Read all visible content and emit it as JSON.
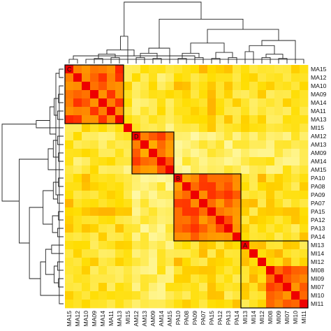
{
  "chart_data": {
    "type": "heatmap",
    "title": "",
    "xlabel": "",
    "ylabel": "",
    "row_labels": [
      "MA15",
      "MA12",
      "MA10",
      "MA09",
      "MA14",
      "MA11",
      "MA13",
      "MI15",
      "AM12",
      "AM13",
      "AM09",
      "AM14",
      "AM15",
      "PA10",
      "PA08",
      "PA09",
      "PA07",
      "PA15",
      "PA12",
      "PA13",
      "PA14",
      "MI13",
      "MI14",
      "MI12",
      "MI08",
      "MI09",
      "MI07",
      "MI10",
      "MI11"
    ],
    "col_labels": [
      "MA15",
      "MA12",
      "MA10",
      "MA09",
      "MA14",
      "MA11",
      "MA13",
      "MI15",
      "AM12",
      "AM13",
      "AM09",
      "AM14",
      "AM15",
      "PA10",
      "PA08",
      "PA09",
      "PA07",
      "PA15",
      "PA12",
      "PA13",
      "PA14",
      "MI13",
      "MI14",
      "MI12",
      "MI08",
      "MI09",
      "MI07",
      "MI10",
      "MI11"
    ],
    "colors": {
      "low": "#ffffcc",
      "mid": "#ffdd00",
      "high": "#ff2200",
      "max": "#ee0000"
    },
    "block_similarity": [
      [
        0.85,
        0.35,
        0.45,
        0.4,
        0.4
      ],
      [
        0.35,
        0.78,
        0.25,
        0.3,
        0.3
      ],
      [
        0.45,
        0.25,
        0.8,
        0.45,
        0.42
      ],
      [
        0.4,
        0.3,
        0.45,
        0.55,
        0.45
      ],
      [
        0.4,
        0.3,
        0.42,
        0.45,
        0.8
      ]
    ],
    "row_group": [
      0,
      0,
      0,
      0,
      0,
      0,
      0,
      3,
      1,
      1,
      1,
      1,
      1,
      2,
      2,
      2,
      2,
      2,
      2,
      2,
      2,
      3,
      3,
      3,
      4,
      4,
      4,
      4,
      4
    ],
    "clusters": [
      {
        "label": "C",
        "start": 0,
        "end": 6
      },
      {
        "label": "D",
        "start": 8,
        "end": 12
      },
      {
        "label": "B",
        "start": 13,
        "end": 20
      },
      {
        "label": "A",
        "start": 21,
        "end": 28
      }
    ],
    "dendrogram": [
      [
        0,
        1,
        0.05
      ],
      [
        2,
        28,
        0.05
      ],
      [
        29,
        30,
        0.09
      ],
      [
        3,
        4,
        0.06
      ],
      [
        5,
        6,
        0.07
      ],
      [
        32,
        33,
        0.11
      ],
      [
        31,
        34,
        0.16
      ],
      [
        35,
        7,
        0.32
      ],
      [
        8,
        9,
        0.07
      ],
      [
        10,
        11,
        0.06
      ],
      [
        37,
        38,
        0.12
      ],
      [
        39,
        12,
        0.18
      ],
      [
        13,
        14,
        0.06
      ],
      [
        15,
        16,
        0.07
      ],
      [
        41,
        42,
        0.12
      ],
      [
        17,
        18,
        0.06
      ],
      [
        19,
        20,
        0.07
      ],
      [
        44,
        45,
        0.13
      ],
      [
        43,
        46,
        0.24
      ],
      [
        21,
        22,
        0.14
      ],
      [
        23,
        24,
        0.07
      ],
      [
        25,
        26,
        0.06
      ],
      [
        49,
        50,
        0.11
      ],
      [
        48,
        51,
        0.21
      ],
      [
        52,
        27,
        0.27
      ],
      [
        47,
        53,
        0.4
      ],
      [
        40,
        54,
        0.52
      ],
      [
        36,
        55,
        0.72
      ]
    ],
    "legend": "none",
    "grid": false
  }
}
